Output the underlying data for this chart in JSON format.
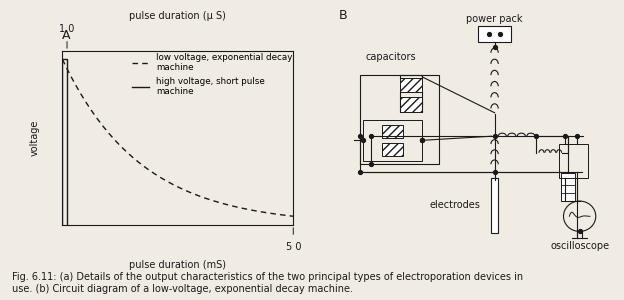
{
  "title_A": "A",
  "title_B": "B",
  "panel_A_xlabel_top": "pulse duration (μ S)",
  "panel_A_xlabel_bottom": "pulse duration (mS)",
  "panel_A_ylabel": "voltage",
  "panel_A_tick_top": "1 0",
  "panel_A_tick_bottom": "5 0",
  "legend_dashed": "low voltage, exponential decay\nmachine",
  "legend_solid": "high voltage, short pulse\nmachine",
  "caption": "Fig. 6.11: (a) Details of the output characteristics of the two principal types of electroporation devices in\nuse. (b) Circuit diagram of a low-voltage, exponential decay machine.",
  "bg_color": "#f0ece4",
  "line_color": "#1a1a1a",
  "font_size_label": 7.0,
  "font_size_caption": 7.0,
  "font_size_title": 9.0
}
